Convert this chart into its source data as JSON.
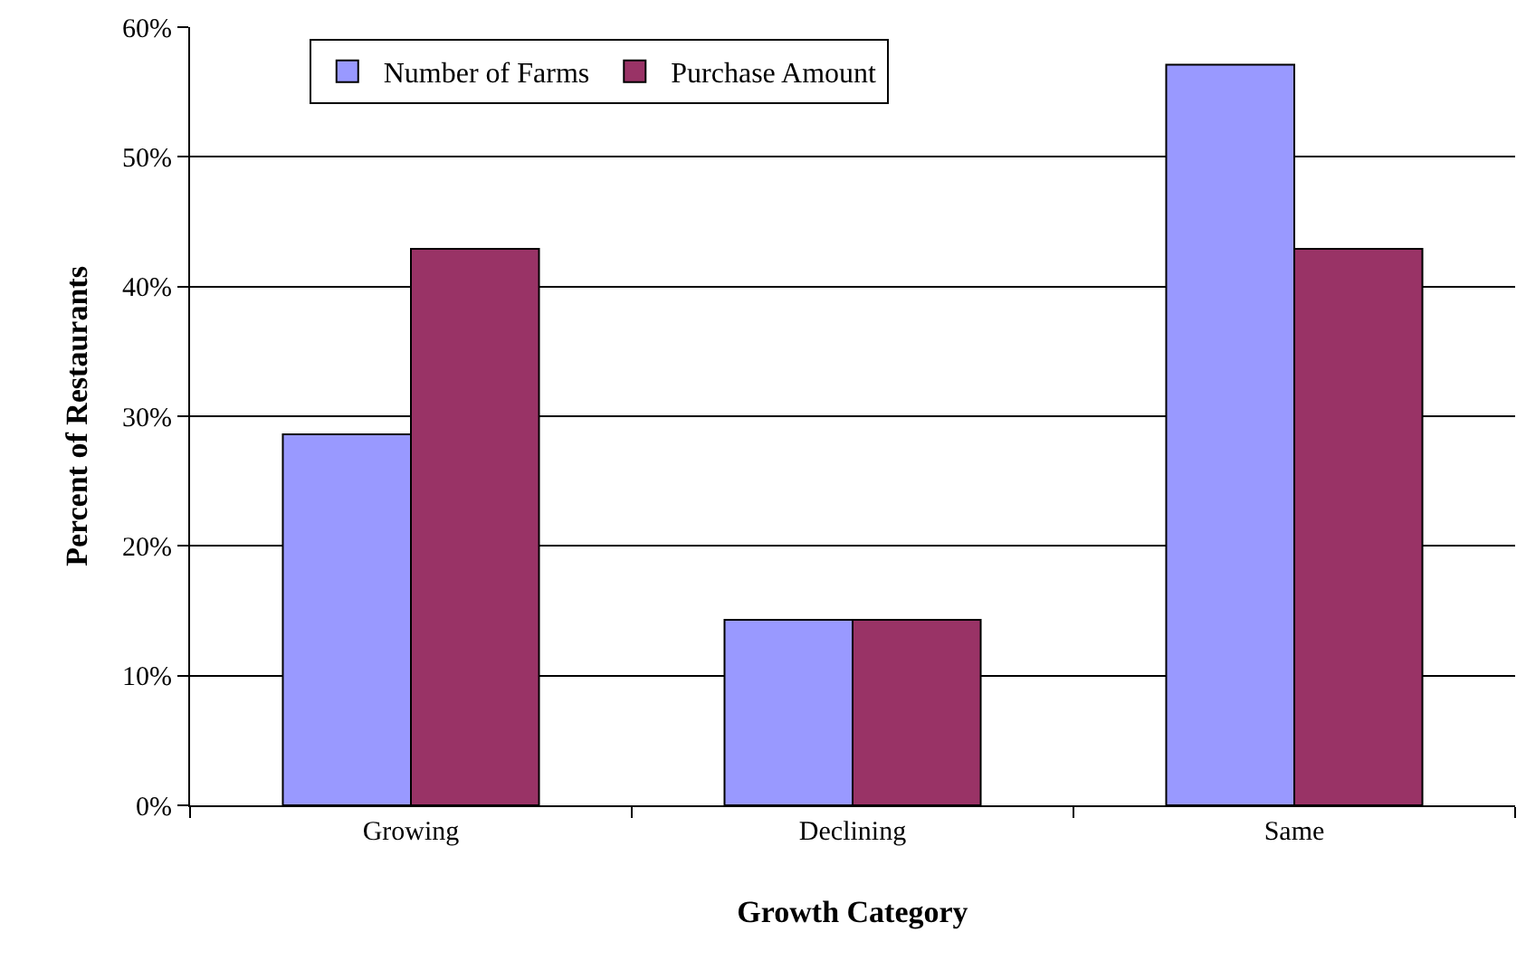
{
  "chart_data": {
    "type": "bar",
    "xlabel": "Growth Category",
    "ylabel": "Percent of Restaurants",
    "categories": [
      "Growing",
      "Declining",
      "Same"
    ],
    "series": [
      {
        "name": "Number of Farms",
        "color": "#9999ff",
        "values": [
          28.6,
          14.3,
          57.1
        ]
      },
      {
        "name": "Purchase Amount",
        "color": "#993366",
        "values": [
          42.9,
          14.3,
          42.9
        ]
      }
    ],
    "ylim": [
      0,
      60
    ],
    "yticks": [
      {
        "value": 0,
        "label": "0%"
      },
      {
        "value": 10,
        "label": "10%"
      },
      {
        "value": 20,
        "label": "20%"
      },
      {
        "value": 30,
        "label": "30%"
      },
      {
        "value": 40,
        "label": "40%"
      },
      {
        "value": 50,
        "label": "50%"
      },
      {
        "value": 60,
        "label": "60%"
      }
    ],
    "grid": "y",
    "legend": "top left"
  }
}
